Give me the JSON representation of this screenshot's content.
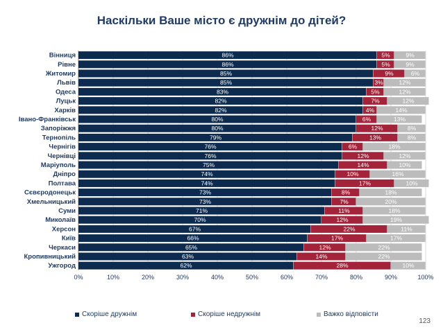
{
  "title": "Наскільки Ваше місто є дружнім до дітей?",
  "page_number": "123",
  "colors": {
    "friendly": "#0d2b4f",
    "unfriendly": "#a3233a",
    "hard": "#bcbcbc"
  },
  "chart_data": {
    "type": "bar",
    "stacked": true,
    "orientation": "horizontal",
    "title": "Наскільки Ваше місто є дружнім до дітей?",
    "categories": [
      "Вінниця",
      "Рівне",
      "Житомир",
      "Львів",
      "Одеса",
      "Луцьк",
      "Харків",
      "Івано-Франківськ",
      "Запоріжжя",
      "Тернопіль",
      "Чернігів",
      "Чернівці",
      "Маріуполь",
      "Дніпро",
      "Полтава",
      "Сєвєродонецьк",
      "Хмельницький",
      "Суми",
      "Миколаїв",
      "Херсон",
      "Київ",
      "Черкаси",
      "Кропивницький",
      "Ужгород"
    ],
    "series": [
      {
        "name": "Скоріше дружнім",
        "values": [
          86,
          86,
          85,
          85,
          83,
          82,
          82,
          80,
          80,
          79,
          76,
          76,
          75,
          74,
          74,
          73,
          73,
          71,
          70,
          67,
          66,
          65,
          63,
          62
        ]
      },
      {
        "name": "Скоріше недружнім",
        "values": [
          5,
          5,
          9,
          3,
          5,
          7,
          4,
          6,
          12,
          13,
          6,
          12,
          14,
          10,
          17,
          8,
          7,
          11,
          12,
          22,
          17,
          12,
          14,
          28
        ]
      },
      {
        "name": "Важко відповісти",
        "values": [
          9,
          9,
          6,
          12,
          12,
          12,
          14,
          13,
          8,
          8,
          18,
          12,
          10,
          16,
          10,
          18,
          20,
          18,
          19,
          11,
          17,
          22,
          22,
          10
        ]
      }
    ],
    "xlim": [
      0,
      100
    ],
    "xticks": [
      "0%",
      "10%",
      "20%",
      "30%",
      "40%",
      "50%",
      "60%",
      "70%",
      "80%",
      "90%",
      "100%"
    ],
    "grid": true,
    "legend": "bottom"
  }
}
